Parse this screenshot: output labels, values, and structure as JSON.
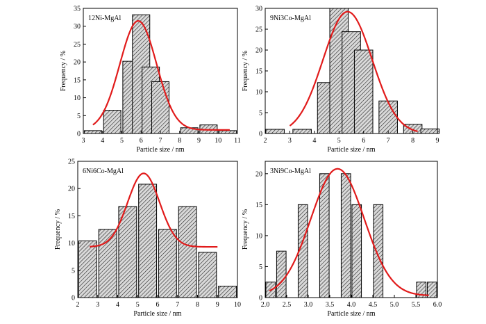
{
  "chart_data": [
    {
      "type": "bar",
      "title": "12Ni-MgAl",
      "xlabel": "Particle size / nm",
      "ylabel": "Frequency / %",
      "xlim": [
        3,
        11
      ],
      "ylim": [
        0,
        35
      ],
      "xticks": [
        "3",
        "4",
        "5",
        "6",
        "7",
        "8",
        "9",
        "10",
        "11"
      ],
      "yticks": [
        "0",
        "5",
        "10",
        "15",
        "20",
        "25",
        "30",
        "35"
      ],
      "bin_width": 0.9,
      "x": [
        3.5,
        4.5,
        5.5,
        6.0,
        6.5,
        7.0,
        8.5,
        9.5,
        10.5
      ],
      "values": [
        0.8,
        6.5,
        20.2,
        33.2,
        18.6,
        14.5,
        1.6,
        2.4,
        0.8
      ],
      "fit": {
        "type": "gaussian",
        "x0": 5.85,
        "sigma": 0.95,
        "amplitude": 30.5,
        "baseline": 1.0,
        "range": [
          3.5,
          10.6
        ]
      }
    },
    {
      "type": "bar",
      "title": "9Ni3Co-MgAl",
      "xlabel": "Particle size / nm",
      "ylabel": "Frequency / %",
      "xlim": [
        2,
        9
      ],
      "ylim": [
        0,
        30
      ],
      "xticks": [
        "2",
        "3",
        "4",
        "5",
        "6",
        "7",
        "8",
        "9"
      ],
      "yticks": [
        "0",
        "5",
        "10",
        "15",
        "20",
        "25",
        "30"
      ],
      "bin_width": 0.75,
      "x": [
        2.4,
        3.5,
        4.5,
        5.0,
        5.5,
        6.0,
        7.0,
        8.0,
        8.7
      ],
      "values": [
        1.0,
        1.0,
        12.2,
        30.0,
        24.4,
        20.0,
        7.8,
        2.2,
        1.1
      ],
      "fit": {
        "type": "gaussian",
        "x0": 5.35,
        "sigma": 1.0,
        "amplitude": 29.2,
        "baseline": 0,
        "range": [
          3.0,
          8.2
        ]
      }
    },
    {
      "type": "bar",
      "title": "6Ni6Co-MgAl",
      "xlabel": "Particle size / nm",
      "ylabel": "Frequency / %",
      "xlim": [
        2,
        10
      ],
      "ylim": [
        0,
        25
      ],
      "xticks": [
        "2",
        "3",
        "4",
        "5",
        "6",
        "7",
        "8",
        "9",
        "10"
      ],
      "yticks": [
        "0",
        "5",
        "10",
        "15",
        "20",
        "25"
      ],
      "bin_width": 0.9,
      "x": [
        2.5,
        3.5,
        4.5,
        5.5,
        6.5,
        7.5,
        8.5,
        9.5
      ],
      "values": [
        10.4,
        12.5,
        16.7,
        20.8,
        12.5,
        16.7,
        8.3,
        2.1
      ],
      "fit": {
        "type": "gaussian",
        "x0": 5.3,
        "sigma": 0.8,
        "amplitude": 13.5,
        "baseline": 9.3,
        "range": [
          2.6,
          9.0
        ]
      }
    },
    {
      "type": "bar",
      "title": "3Ni9Co-MgAl",
      "xlabel": "Particle size / nm",
      "ylabel": "Frequency / %",
      "xlim": [
        2.0,
        6.0
      ],
      "ylim": [
        0,
        22
      ],
      "xticks": [
        "2.0",
        "2.5",
        "3.0",
        "3.5",
        "4.0",
        "4.5",
        "5.0",
        "5.5",
        "6.0"
      ],
      "yticks": [
        "0",
        "5",
        "10",
        "15",
        "20"
      ],
      "bin_width": 0.22,
      "x": [
        2.125,
        2.375,
        2.875,
        3.375,
        3.875,
        4.125,
        4.625,
        5.625,
        5.875
      ],
      "values": [
        2.5,
        7.5,
        15.0,
        20.0,
        20.0,
        15.0,
        15.0,
        2.5,
        2.5
      ],
      "fit": {
        "type": "gaussian",
        "x0": 3.68,
        "sigma": 0.62,
        "amplitude": 20.5,
        "baseline": 0.3,
        "range": [
          2.1,
          5.8
        ]
      }
    }
  ]
}
